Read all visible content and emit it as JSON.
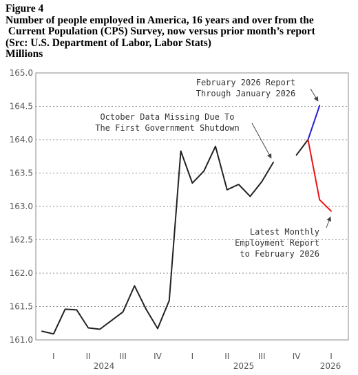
{
  "header": {
    "figure_label": "Figure 4",
    "title_line1": "Number of people employed in America, 16 years and over from the",
    "title_line2": " Current Population (CPS) Survey, now versus prior month’s report",
    "source": "(Src: U.S. Department of Labor, Labor Stats)",
    "units": "Millions"
  },
  "chart_data": {
    "type": "line",
    "title": "Number of people employed in America, 16 years and over from the Current Population (CPS) Survey, now versus prior month’s report",
    "ylabel": "Millions",
    "ylim": [
      161.0,
      165.0
    ],
    "y_ticks": [
      "161.0",
      "161.5",
      "162.0",
      "162.5",
      "163.0",
      "163.5",
      "164.0",
      "164.5",
      "165.0"
    ],
    "x_quarter_labels": [
      "I",
      "II",
      "III",
      "IV",
      "I",
      "II",
      "III",
      "IV",
      "I"
    ],
    "x_year_labels": [
      "2024",
      "2025",
      "2026"
    ],
    "grid": "horizontal dotted",
    "series": [
      {
        "color": "#222222",
        "segments": [
          {
            "x": [
              "2024-01",
              "2024-02",
              "2024-03",
              "2024-04",
              "2024-05",
              "2024-06",
              "2024-07",
              "2024-08",
              "2024-09",
              "2024-10",
              "2024-11",
              "2024-12",
              "2025-01",
              "2025-02",
              "2025-03",
              "2025-04",
              "2025-05",
              "2025-06",
              "2025-07",
              "2025-08",
              "2025-09"
            ],
            "y": [
              161.13,
              161.09,
              161.46,
              161.45,
              161.18,
              161.16,
              161.29,
              161.42,
              161.81,
              161.46,
              161.17,
              161.59,
              163.83,
              163.35,
              163.53,
              163.9,
              163.25,
              163.33,
              163.15,
              163.37,
              163.66
            ]
          },
          {
            "x": [
              "2025-11",
              "2025-12"
            ],
            "y": [
              163.77,
              164.0
            ]
          }
        ]
      },
      {
        "color": "#2222dd",
        "segments": [
          {
            "x": [
              "2025-12",
              "2026-01"
            ],
            "y": [
              164.0,
              164.51
            ]
          }
        ]
      },
      {
        "color": "#ee1111",
        "segments": [
          {
            "x": [
              "2025-12",
              "2026-01",
              "2026-02"
            ],
            "y": [
              164.0,
              163.1,
              162.93
            ]
          }
        ]
      }
    ],
    "annotations": [
      {
        "lines": [
          "February 2026 Report",
          "Through January 2026"
        ],
        "points_to": {
          "x": "2026-01",
          "y": 164.51
        }
      },
      {
        "lines": [
          "October Data Missing Due To",
          "The First Government Shutdown"
        ],
        "points_to": {
          "x": "2025-09",
          "y": 163.66
        }
      },
      {
        "lines": [
          "Latest Monthly",
          "Employment Report",
          "to February 2026"
        ],
        "points_to": {
          "x": "2026-02",
          "y": 162.93
        }
      }
    ]
  }
}
